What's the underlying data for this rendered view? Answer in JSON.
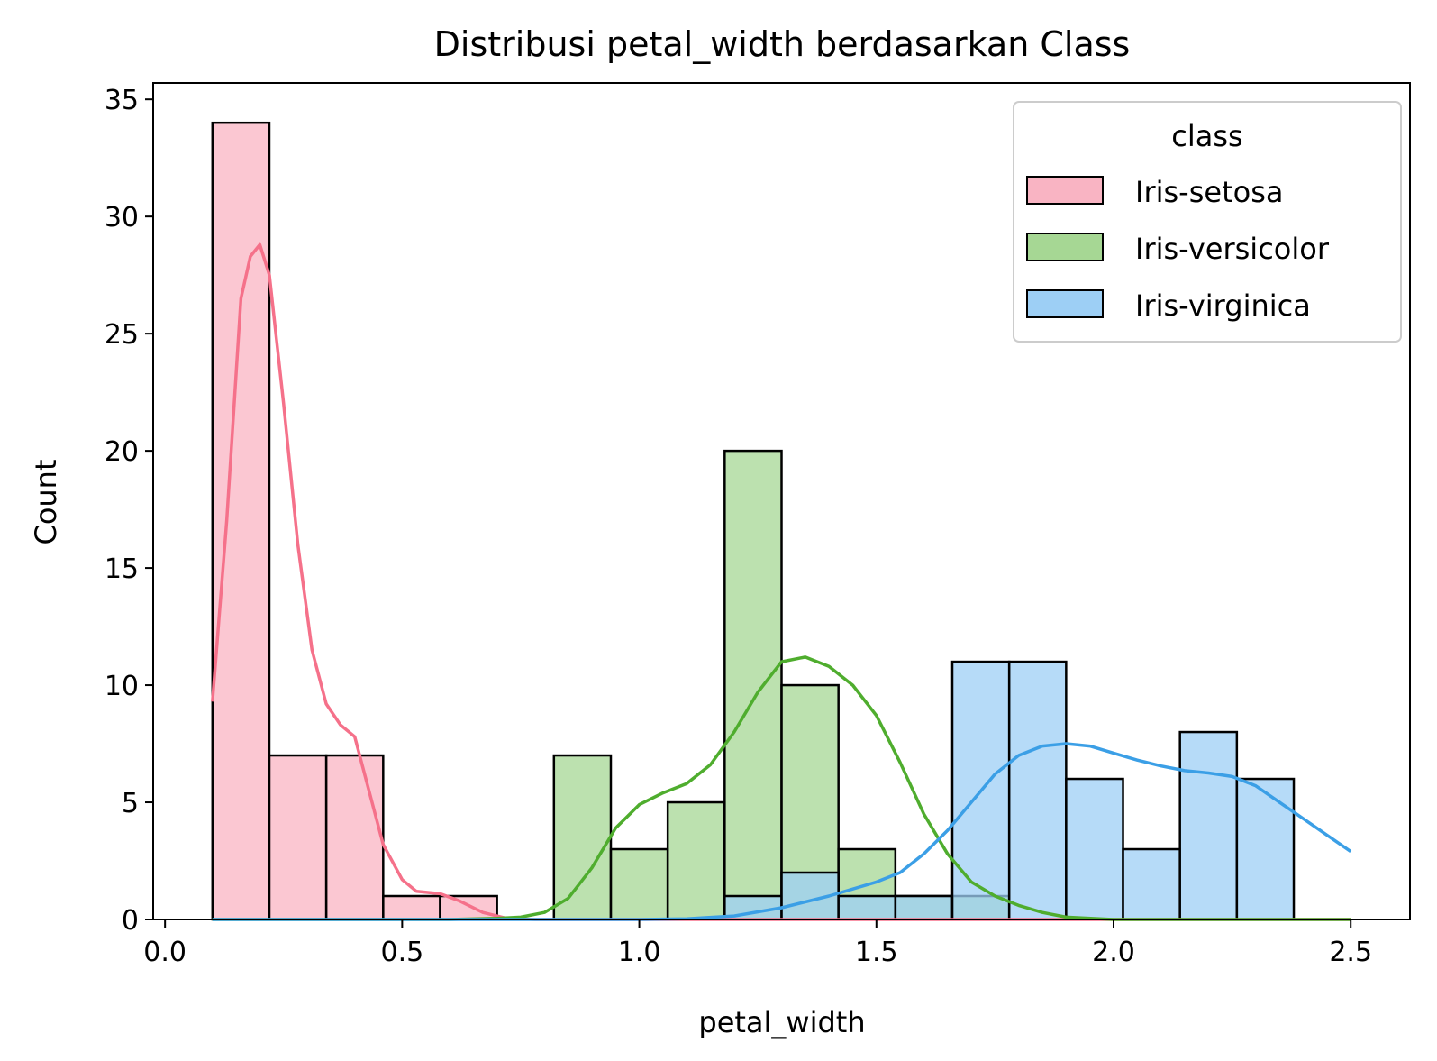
{
  "chart_data": {
    "type": "histogram",
    "title": "Distribusi petal_width berdasarkan Class",
    "xlabel": "petal_width",
    "ylabel": "Count",
    "xlim": [
      -0.025,
      2.625
    ],
    "ylim": [
      0,
      35.7
    ],
    "xticks": [
      0.0,
      0.5,
      1.0,
      1.5,
      2.0,
      2.5
    ],
    "xtick_labels": [
      "0.0",
      "0.5",
      "1.0",
      "1.5",
      "2.0",
      "2.5"
    ],
    "yticks": [
      0,
      5,
      10,
      15,
      20,
      25,
      30,
      35
    ],
    "ytick_labels": [
      "0",
      "5",
      "10",
      "15",
      "20",
      "25",
      "30",
      "35"
    ],
    "bin_edges": [
      0.1,
      0.22,
      0.34,
      0.46,
      0.58,
      0.7,
      0.82,
      0.94,
      1.06,
      1.18,
      1.3,
      1.42,
      1.54,
      1.66,
      1.78,
      1.9,
      2.02,
      2.14,
      2.26,
      2.38,
      2.5
    ],
    "grid": false,
    "legend": {
      "title": "class",
      "placement": "top-right"
    },
    "series": [
      {
        "name": "Iris-setosa",
        "fill": "#f9b4c3",
        "line": "#f5718a",
        "counts": [
          34,
          7,
          7,
          1,
          1,
          0,
          0,
          0,
          0,
          0,
          0,
          0,
          0,
          0,
          0,
          0,
          0,
          0,
          0,
          0
        ],
        "kde": [
          [
            0.1,
            9.3
          ],
          [
            0.13,
            17
          ],
          [
            0.16,
            26.5
          ],
          [
            0.18,
            28.3
          ],
          [
            0.2,
            28.8
          ],
          [
            0.22,
            27.5
          ],
          [
            0.25,
            22
          ],
          [
            0.28,
            16
          ],
          [
            0.31,
            11.5
          ],
          [
            0.34,
            9.2
          ],
          [
            0.37,
            8.3
          ],
          [
            0.4,
            7.8
          ],
          [
            0.43,
            5.5
          ],
          [
            0.46,
            3.2
          ],
          [
            0.5,
            1.7
          ],
          [
            0.53,
            1.2
          ],
          [
            0.58,
            1.1
          ],
          [
            0.62,
            0.8
          ],
          [
            0.67,
            0.3
          ],
          [
            0.72,
            0.05
          ],
          [
            0.78,
            0.0
          ],
          [
            2.5,
            0.0
          ]
        ]
      },
      {
        "name": "Iris-versicolor",
        "fill": "#a6d794",
        "line": "#4fad2e",
        "counts": [
          0,
          0,
          0,
          0,
          0,
          0,
          7,
          3,
          5,
          20,
          10,
          3,
          1,
          1,
          0,
          0,
          0,
          0,
          0,
          0
        ],
        "kde": [
          [
            0.1,
            0.0
          ],
          [
            0.6,
            0.0
          ],
          [
            0.7,
            0.05
          ],
          [
            0.75,
            0.1
          ],
          [
            0.8,
            0.3
          ],
          [
            0.85,
            0.9
          ],
          [
            0.9,
            2.2
          ],
          [
            0.95,
            3.9
          ],
          [
            1.0,
            4.9
          ],
          [
            1.05,
            5.4
          ],
          [
            1.1,
            5.8
          ],
          [
            1.15,
            6.6
          ],
          [
            1.2,
            8.0
          ],
          [
            1.25,
            9.7
          ],
          [
            1.3,
            11.0
          ],
          [
            1.35,
            11.2
          ],
          [
            1.4,
            10.8
          ],
          [
            1.45,
            10.0
          ],
          [
            1.5,
            8.7
          ],
          [
            1.55,
            6.7
          ],
          [
            1.6,
            4.5
          ],
          [
            1.65,
            2.8
          ],
          [
            1.7,
            1.6
          ],
          [
            1.75,
            1.0
          ],
          [
            1.8,
            0.6
          ],
          [
            1.85,
            0.3
          ],
          [
            1.9,
            0.1
          ],
          [
            2.0,
            0.0
          ],
          [
            2.5,
            0.0
          ]
        ]
      },
      {
        "name": "Iris-virginica",
        "fill": "#9dcff5",
        "line": "#3b9fe6",
        "counts": [
          0,
          0,
          0,
          0,
          0,
          0,
          0,
          0,
          0,
          1,
          2,
          1,
          1,
          11,
          11,
          6,
          3,
          8,
          6,
          0
        ],
        "kde": [
          [
            0.1,
            0.0
          ],
          [
            1.0,
            0.0
          ],
          [
            1.1,
            0.03
          ],
          [
            1.2,
            0.15
          ],
          [
            1.3,
            0.5
          ],
          [
            1.4,
            1.0
          ],
          [
            1.5,
            1.6
          ],
          [
            1.55,
            2.0
          ],
          [
            1.6,
            2.8
          ],
          [
            1.65,
            3.8
          ],
          [
            1.7,
            5.0
          ],
          [
            1.75,
            6.2
          ],
          [
            1.8,
            7.0
          ],
          [
            1.85,
            7.4
          ],
          [
            1.9,
            7.5
          ],
          [
            1.95,
            7.4
          ],
          [
            2.0,
            7.1
          ],
          [
            2.05,
            6.8
          ],
          [
            2.1,
            6.55
          ],
          [
            2.15,
            6.35
          ],
          [
            2.2,
            6.25
          ],
          [
            2.25,
            6.1
          ],
          [
            2.3,
            5.7
          ],
          [
            2.35,
            5.0
          ],
          [
            2.4,
            4.3
          ],
          [
            2.45,
            3.6
          ],
          [
            2.5,
            2.9
          ]
        ]
      }
    ]
  }
}
